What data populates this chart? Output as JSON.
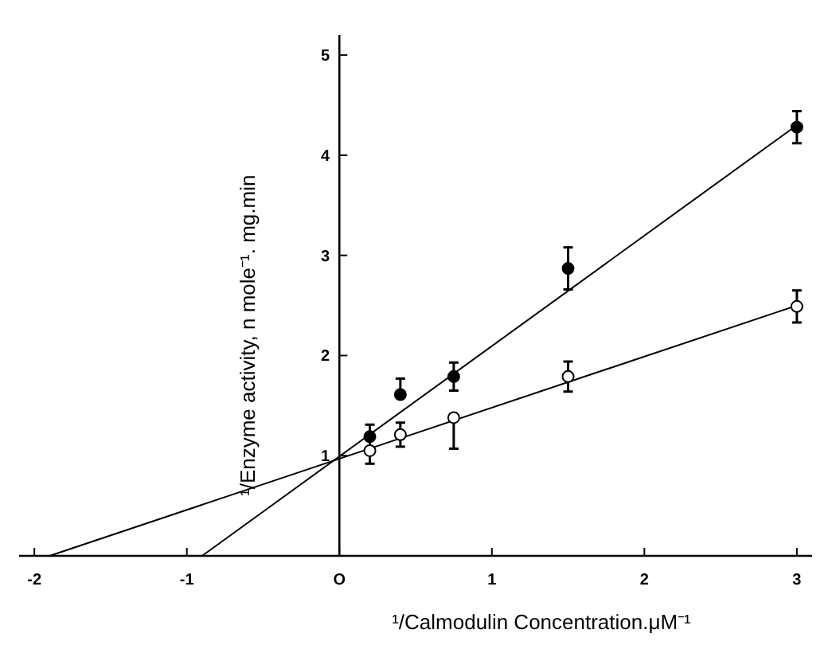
{
  "chart_data": {
    "type": "scatter",
    "xlabel": "¹/Calmodulin Concentration.μM⁻¹",
    "ylabel": "¹/Enzyme activity, n mole⁻¹. mg.min",
    "xlim": [
      -2.1,
      3.1
    ],
    "ylim": [
      0,
      5.2
    ],
    "xticks": [
      -2,
      -1,
      {
        "value": 0,
        "label": "O"
      },
      1,
      2,
      3
    ],
    "yticks": [
      1,
      2,
      3,
      4,
      5
    ],
    "grid": false,
    "series": [
      {
        "marker": "circle",
        "color": "#000000",
        "x": [
          0.2,
          0.4,
          0.75,
          1.5,
          3
        ],
        "values": [
          1.19,
          1.61,
          1.79,
          2.87,
          4.28
        ],
        "errors": [
          0.12,
          [
            1.61,
            1.77
          ],
          0.14,
          0.21,
          0.16
        ]
      },
      {
        "marker": "circle",
        "color": "#ffffff",
        "x": [
          0.2,
          0.4,
          0.75,
          1.5,
          3
        ],
        "values": [
          1.05,
          1.21,
          1.38,
          1.79,
          2.49
        ],
        "errors": [
          0.13,
          0.12,
          [
            1.07,
            1.38
          ],
          0.15,
          0.16
        ]
      },
      {
        "type": "line",
        "color": "#000000",
        "line_style": "solid",
        "x": [
          -0.9,
          3
        ],
        "values": [
          0,
          4.3
        ]
      },
      {
        "type": "line",
        "color": "#000000",
        "line_style": "solid",
        "x": [
          -1.9,
          3
        ],
        "values": [
          0,
          2.5
        ]
      }
    ]
  }
}
